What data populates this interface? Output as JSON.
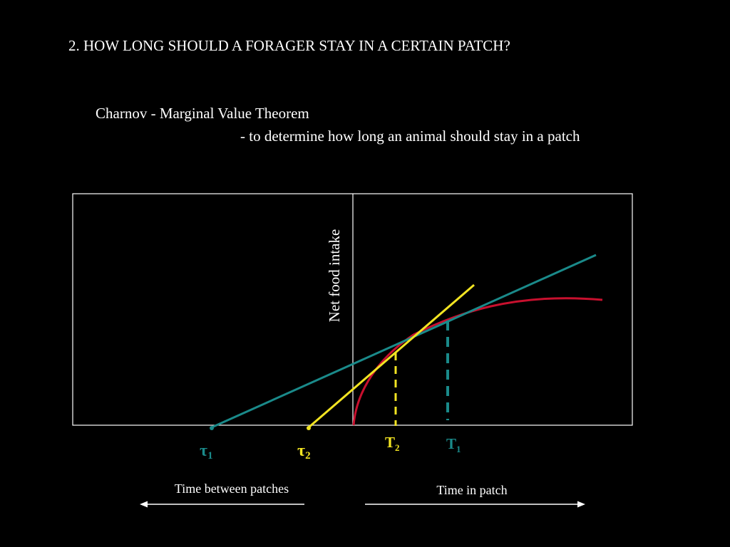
{
  "heading": "2. HOW LONG SHOULD A FORAGER STAY IN A CERTAIN PATCH?",
  "subtitle": "Charnov - Marginal Value Theorem",
  "subtitle_detail": "- to determine how long an animal should stay in a patch",
  "diagram": {
    "y_axis_label": "Net food intake",
    "tau1": {
      "symbol": "τ",
      "subscript": "1"
    },
    "tau2": {
      "symbol": "τ",
      "subscript": "2"
    },
    "T1": {
      "symbol": "T",
      "subscript": "1"
    },
    "T2": {
      "symbol": "T",
      "subscript": "2"
    },
    "left_arrow_label": "Time between patches",
    "right_arrow_label": "Time in patch",
    "colors": {
      "gain_curve": "#c8102e",
      "tangent_1": "#1a8a8a",
      "tangent_2": "#f2e422",
      "axes": "#ffffff",
      "background": "#000000"
    }
  }
}
